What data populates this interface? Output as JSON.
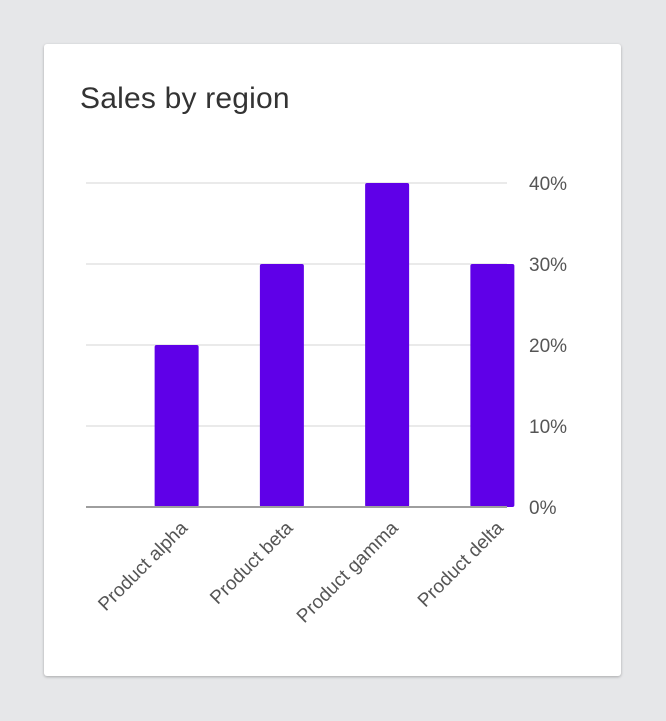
{
  "card": {
    "title": "Sales by region"
  },
  "chart_data": {
    "type": "bar",
    "title": "Sales by region",
    "categories": [
      "Product alpha",
      "Product beta",
      "Product gamma",
      "Product delta"
    ],
    "values": [
      20,
      30,
      40,
      30
    ],
    "unit": "%",
    "ylim": [
      0,
      40
    ],
    "yticks": [
      0,
      10,
      20,
      30,
      40
    ],
    "ytick_labels": [
      "0%",
      "10%",
      "20%",
      "30%",
      "40%"
    ],
    "y_axis_side": "right",
    "xlabel": "",
    "ylabel": "",
    "grid": true,
    "legend": "none",
    "colors": {
      "bar": "#5f00e8",
      "grid": "#e4e4e4",
      "baseline": "#9e9e9e",
      "text": "#555555"
    }
  }
}
